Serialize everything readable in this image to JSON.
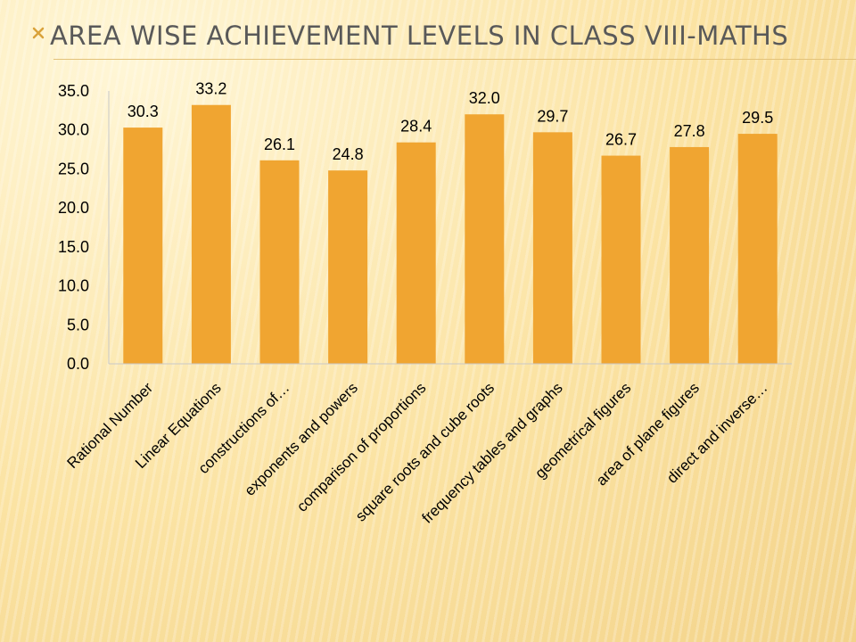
{
  "slide": {
    "title": "Area wise achievement levels in Class VIII-Maths"
  },
  "colors": {
    "bar": "#f0a531",
    "axis": "#c8c8c8",
    "text": "#000000",
    "title": "#595959"
  },
  "chart_data": {
    "type": "bar",
    "title": "",
    "xlabel": "",
    "ylabel": "",
    "ylim": [
      0,
      35
    ],
    "yticks": [
      "0.0",
      "5.0",
      "10.0",
      "15.0",
      "20.0",
      "25.0",
      "30.0",
      "35.0"
    ],
    "grid": false,
    "legend": "none",
    "categories": [
      "Rational Number",
      "Linear Equations",
      "constructions of…",
      "exponents and powers",
      "comparison of proportions",
      "square roots and cube roots",
      "frequency tables and graphs",
      "geometrical figures",
      "area of plane figures",
      "direct and inverse…"
    ],
    "values": [
      30.3,
      33.2,
      26.1,
      24.8,
      28.4,
      32.0,
      29.7,
      26.7,
      27.8,
      29.5
    ],
    "value_labels": [
      "30.3",
      "33.2",
      "26.1",
      "24.8",
      "28.4",
      "32.0",
      "29.7",
      "26.7",
      "27.8",
      "29.5"
    ]
  }
}
